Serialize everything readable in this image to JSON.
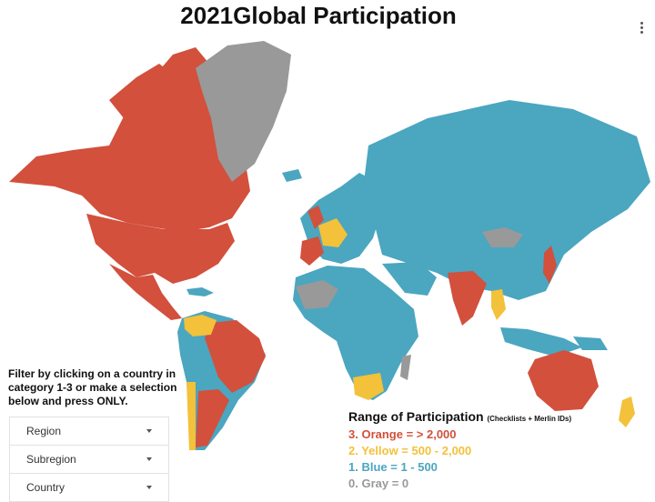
{
  "title": "2021Global Participation",
  "menu_icon": "kebab-menu-icon",
  "filter_note": "Filter by clicking on a country in category 1-3 or make a selection below and press ONLY.",
  "filters": [
    {
      "label": "Region"
    },
    {
      "label": "Subregion"
    },
    {
      "label": "Country"
    }
  ],
  "legend": {
    "title": "Range of Participation",
    "subtitle": "(Checklists + Merlin IDs)",
    "items": [
      {
        "text": "3. Orange = > 2,000",
        "color": "#d2503c"
      },
      {
        "text": "2. Yellow = 500 - 2,000",
        "color": "#f3c13a"
      },
      {
        "text": "1. Blue  = 1 - 500",
        "color": "#4ba6c0"
      },
      {
        "text": "0. Gray = 0",
        "color": "#999999"
      }
    ]
  },
  "colors": {
    "orange": "#d2503c",
    "yellow": "#f3c13a",
    "blue": "#4ba6c0",
    "gray": "#999999"
  }
}
